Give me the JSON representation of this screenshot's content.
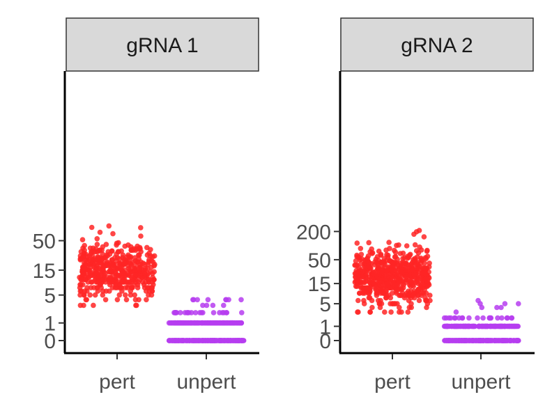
{
  "chart_data": [
    {
      "type": "scatter",
      "facet_label": "gRNA 1",
      "categories": [
        "pert",
        "unpert"
      ],
      "yscale": "pseudo-log (log1p)",
      "yticks": [
        0,
        1,
        5,
        15,
        50
      ],
      "ylim": [
        0,
        100
      ],
      "series": [
        {
          "category": "pert",
          "color": "#ff2626",
          "n_points": 460,
          "distribution": "jittered counts mostly 5-40, median ~15, range 3-90",
          "values_min": 3,
          "values_max": 90
        },
        {
          "category": "unpert",
          "color": "#b63df0",
          "n_points": 420,
          "distribution": "jittered counts mostly 0, many at 1, few at 2 and 4",
          "values_min": 0,
          "values_max": 4
        }
      ],
      "grid": false,
      "legend": "none"
    },
    {
      "type": "scatter",
      "facet_label": "gRNA 2",
      "categories": [
        "pert",
        "unpert"
      ],
      "yscale": "pseudo-log (log1p)",
      "yticks": [
        0,
        1,
        5,
        15,
        50,
        200
      ],
      "ylim": [
        0,
        220
      ],
      "series": [
        {
          "category": "pert",
          "color": "#ff2626",
          "n_points": 600,
          "distribution": "jittered counts mostly 6-60, median ~20, range 3-210",
          "values_min": 3,
          "values_max": 210
        },
        {
          "category": "unpert",
          "color": "#b63df0",
          "n_points": 440,
          "distribution": "jittered counts mostly 0, many at 1, few at 2-6",
          "values_min": 0,
          "values_max": 6
        }
      ],
      "grid": false,
      "legend": "none"
    }
  ]
}
